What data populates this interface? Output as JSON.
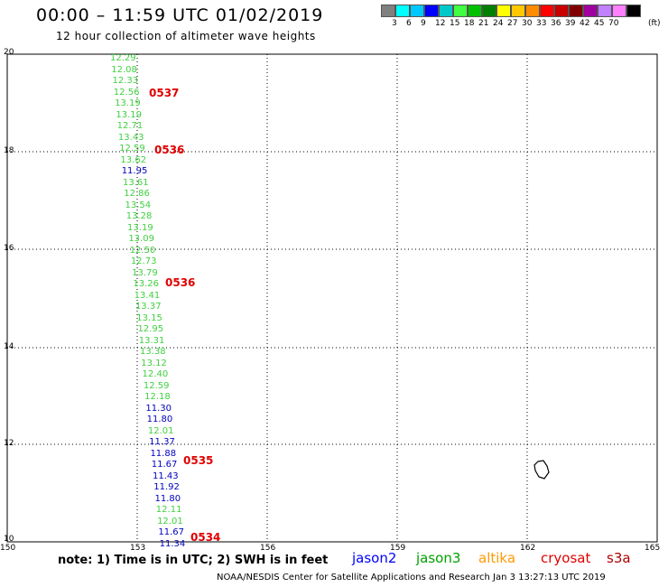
{
  "header": {
    "title": "00:00 – 11:59 UTC 01/02/2019",
    "subtitle": "12 hour collection of altimeter wave heights"
  },
  "legend": {
    "colors": [
      "#808080",
      "#00ffff",
      "#00c8ff",
      "#0000ff",
      "#00c8c8",
      "#40ff40",
      "#00c000",
      "#008000",
      "#ffff00",
      "#ffc800",
      "#ff8c00",
      "#ff0000",
      "#c80000",
      "#800000",
      "#a000a0",
      "#c080ff",
      "#ff80ff",
      "#000000"
    ],
    "labels": [
      "3",
      "6",
      "9",
      "12",
      "15",
      "18",
      "21",
      "24",
      "27",
      "30",
      "33",
      "36",
      "39",
      "42",
      "45",
      "70"
    ],
    "unit": "(ft)"
  },
  "axes": {
    "y_ticks": [
      "20",
      "18",
      "16",
      "14",
      "12",
      "10"
    ],
    "x_ticks": [
      "150",
      "153",
      "156",
      "159",
      "162",
      "165"
    ]
  },
  "observations": [
    {
      "v": "12.29",
      "c": "g"
    },
    {
      "v": "12.08",
      "c": "g"
    },
    {
      "v": "12.33",
      "c": "g"
    },
    {
      "v": "12.56",
      "c": "g"
    },
    {
      "v": "13.19",
      "c": "g"
    },
    {
      "v": "13.19",
      "c": "g"
    },
    {
      "v": "12.71",
      "c": "g"
    },
    {
      "v": "13.43",
      "c": "g"
    },
    {
      "v": "12.59",
      "c": "g"
    },
    {
      "v": "13.62",
      "c": "g"
    },
    {
      "v": "11.95",
      "c": "b"
    },
    {
      "v": "13.61",
      "c": "g"
    },
    {
      "v": "12.86",
      "c": "g"
    },
    {
      "v": "13.54",
      "c": "g"
    },
    {
      "v": "13.28",
      "c": "g"
    },
    {
      "v": "13.19",
      "c": "g"
    },
    {
      "v": "13.09",
      "c": "g"
    },
    {
      "v": "12.50",
      "c": "g"
    },
    {
      "v": "12.73",
      "c": "g"
    },
    {
      "v": "13.79",
      "c": "g"
    },
    {
      "v": "13.26",
      "c": "g"
    },
    {
      "v": "13.41",
      "c": "g"
    },
    {
      "v": "13.37",
      "c": "g"
    },
    {
      "v": "13.15",
      "c": "g"
    },
    {
      "v": "12.95",
      "c": "g"
    },
    {
      "v": "13.31",
      "c": "g"
    },
    {
      "v": "13.38",
      "c": "g"
    },
    {
      "v": "13.12",
      "c": "g"
    },
    {
      "v": "12.40",
      "c": "g"
    },
    {
      "v": "12.59",
      "c": "g"
    },
    {
      "v": "12.18",
      "c": "g"
    },
    {
      "v": "11.30",
      "c": "b"
    },
    {
      "v": "11.80",
      "c": "b"
    },
    {
      "v": "12.01",
      "c": "g"
    },
    {
      "v": "11.37",
      "c": "b"
    },
    {
      "v": "11.88",
      "c": "b"
    },
    {
      "v": "11.67",
      "c": "b"
    },
    {
      "v": "11.43",
      "c": "b"
    },
    {
      "v": "11.92",
      "c": "b"
    },
    {
      "v": "11.80",
      "c": "b"
    },
    {
      "v": "12.11",
      "c": "g"
    },
    {
      "v": "12.01",
      "c": "g"
    },
    {
      "v": "11.67",
      "c": "b"
    },
    {
      "v": "11.34",
      "c": "b"
    }
  ],
  "passes": [
    "0537",
    "0536",
    "0536",
    "0535",
    "0534"
  ],
  "footer": {
    "note": "note: 1) Time is in UTC; 2) SWH is in feet",
    "satellites": [
      {
        "name": "jason2",
        "color": "#0000ff"
      },
      {
        "name": "jason3",
        "color": "#00a000"
      },
      {
        "name": "altika",
        "color": "#ff9900"
      },
      {
        "name": "cryosat",
        "color": "#e00000"
      },
      {
        "name": "s3a",
        "color": "#b00000"
      }
    ],
    "credit": "NOAA/NESDIS Center for Satellite Applications and Research   Jan  3 13:27:13 UTC 2019"
  }
}
